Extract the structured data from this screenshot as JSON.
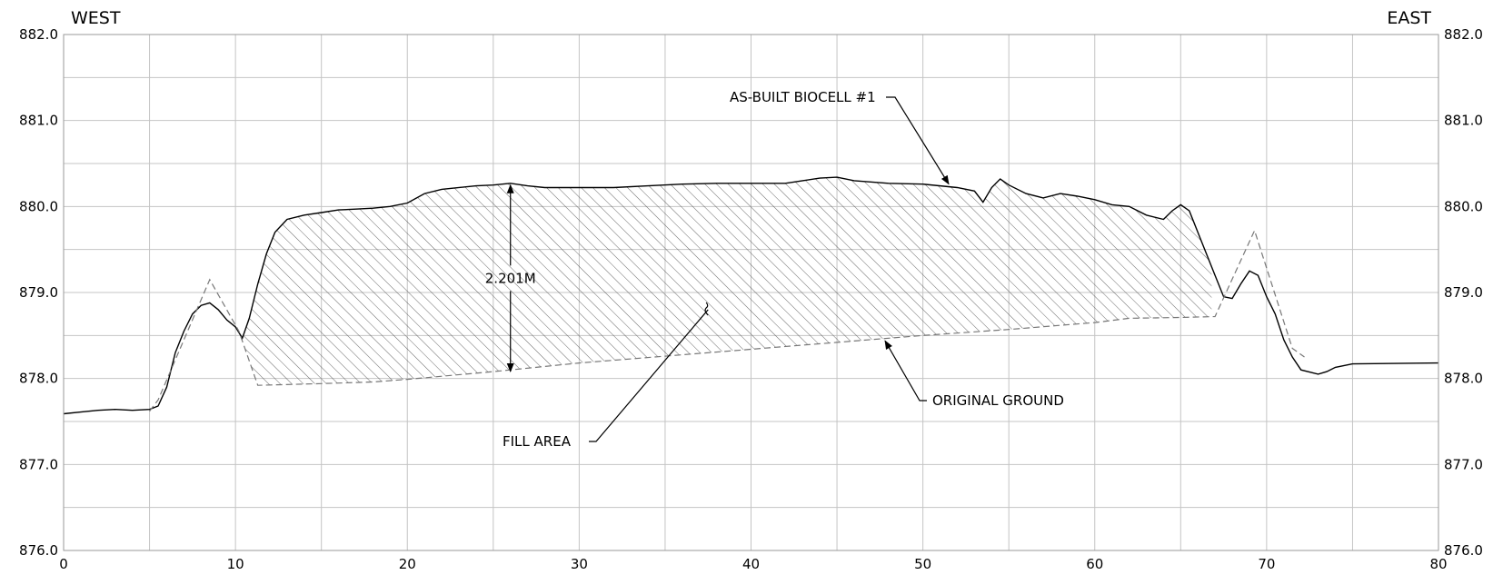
{
  "chart_data": {
    "type": "line",
    "title": "",
    "xlabel": "",
    "ylabel": "",
    "xlim": [
      0,
      80
    ],
    "ylim": [
      876.0,
      882.0
    ],
    "x_ticks": [
      "0",
      "10",
      "20",
      "30",
      "40",
      "50",
      "60",
      "70",
      "80"
    ],
    "y_ticks": [
      "876.0",
      "877.0",
      "878.0",
      "879.0",
      "880.0",
      "881.0",
      "882.0"
    ],
    "grid": true,
    "side_labels": {
      "left": "WEST",
      "right": "EAST"
    },
    "series": [
      {
        "name": "AS-BUILT BIOCELL #1",
        "style": "solid",
        "color": "#000000",
        "points": [
          [
            0,
            877.59
          ],
          [
            1,
            877.61
          ],
          [
            2,
            877.63
          ],
          [
            3,
            877.64
          ],
          [
            4,
            877.63
          ],
          [
            5,
            877.64
          ],
          [
            5.5,
            877.68
          ],
          [
            6,
            877.9
          ],
          [
            6.5,
            878.3
          ],
          [
            7,
            878.55
          ],
          [
            7.5,
            878.75
          ],
          [
            8,
            878.85
          ],
          [
            8.5,
            878.88
          ],
          [
            9,
            878.8
          ],
          [
            9.5,
            878.68
          ],
          [
            10,
            878.6
          ],
          [
            10.4,
            878.47
          ],
          [
            10.8,
            878.7
          ],
          [
            11.3,
            879.1
          ],
          [
            11.8,
            879.45
          ],
          [
            12.3,
            879.7
          ],
          [
            13,
            879.85
          ],
          [
            14,
            879.9
          ],
          [
            15,
            879.93
          ],
          [
            16,
            879.96
          ],
          [
            17,
            879.97
          ],
          [
            18,
            879.98
          ],
          [
            19,
            880.0
          ],
          [
            20,
            880.04
          ],
          [
            21,
            880.15
          ],
          [
            22,
            880.2
          ],
          [
            24,
            880.24
          ],
          [
            25,
            880.25
          ],
          [
            26,
            880.27
          ],
          [
            27,
            880.24
          ],
          [
            28,
            880.22
          ],
          [
            30,
            880.22
          ],
          [
            32,
            880.22
          ],
          [
            34,
            880.24
          ],
          [
            36,
            880.26
          ],
          [
            38,
            880.27
          ],
          [
            40,
            880.27
          ],
          [
            42,
            880.27
          ],
          [
            43,
            880.3
          ],
          [
            44,
            880.33
          ],
          [
            45,
            880.34
          ],
          [
            46,
            880.3
          ],
          [
            48,
            880.27
          ],
          [
            50,
            880.26
          ],
          [
            52,
            880.22
          ],
          [
            53,
            880.18
          ],
          [
            53.5,
            880.05
          ],
          [
            54,
            880.22
          ],
          [
            54.5,
            880.32
          ],
          [
            55,
            880.25
          ],
          [
            56,
            880.15
          ],
          [
            57,
            880.1
          ],
          [
            58,
            880.15
          ],
          [
            59,
            880.12
          ],
          [
            60,
            880.08
          ],
          [
            61,
            880.02
          ],
          [
            62,
            880.0
          ],
          [
            63,
            879.9
          ],
          [
            64,
            879.85
          ],
          [
            64.5,
            879.95
          ],
          [
            65,
            880.02
          ],
          [
            65.5,
            879.95
          ],
          [
            66,
            879.7
          ],
          [
            67,
            879.2
          ],
          [
            67.5,
            878.95
          ],
          [
            68,
            878.93
          ],
          [
            68.5,
            879.1
          ],
          [
            69,
            879.25
          ],
          [
            69.5,
            879.2
          ],
          [
            70,
            878.95
          ],
          [
            70.5,
            878.75
          ],
          [
            71,
            878.45
          ],
          [
            71.5,
            878.25
          ],
          [
            72,
            878.1
          ],
          [
            73,
            878.05
          ],
          [
            73.5,
            878.08
          ],
          [
            74,
            878.13
          ],
          [
            75,
            878.17
          ],
          [
            80,
            878.18
          ]
        ]
      },
      {
        "name": "ORIGINAL GROUND",
        "style": "dashed",
        "color": "#777777",
        "points": [
          [
            5,
            877.62
          ],
          [
            5.5,
            877.75
          ],
          [
            8.5,
            879.15
          ],
          [
            10.2,
            878.55
          ],
          [
            11.3,
            877.92
          ],
          [
            15,
            877.94
          ],
          [
            18,
            877.96
          ],
          [
            20,
            877.99
          ],
          [
            25,
            878.08
          ],
          [
            30,
            878.18
          ],
          [
            35,
            878.26
          ],
          [
            40,
            878.34
          ],
          [
            45,
            878.42
          ],
          [
            50,
            878.5
          ],
          [
            55,
            878.57
          ],
          [
            60,
            878.65
          ],
          [
            62,
            878.7
          ],
          [
            65,
            878.71
          ],
          [
            67,
            878.72
          ],
          [
            69.3,
            879.72
          ],
          [
            71.5,
            878.35
          ],
          [
            72.2,
            878.25
          ]
        ]
      }
    ],
    "fill_region": {
      "label": "FILL AREA",
      "pattern": "hatched",
      "x_range": [
        10.4,
        66.8
      ]
    },
    "annotations": [
      {
        "text": "AS-BUILT BIOCELL #1",
        "points_to": [
          51.5,
          880.22
        ]
      },
      {
        "text": "ORIGINAL GROUND",
        "points_to": [
          47.8,
          878.48
        ]
      },
      {
        "text": "FILL AREA",
        "points_to": [
          37.5,
          878.8
        ]
      },
      {
        "text": "2.201M",
        "x": 26,
        "from": 878.06,
        "to": 880.27
      }
    ]
  }
}
